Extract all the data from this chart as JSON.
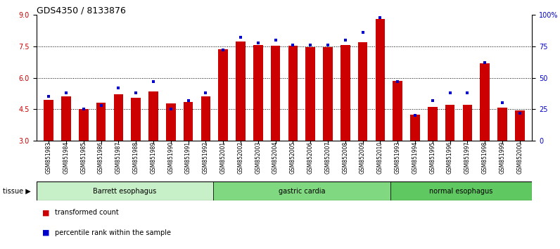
{
  "title": "GDS4350 / 8133876",
  "samples": [
    "GSM851983",
    "GSM851984",
    "GSM851985",
    "GSM851986",
    "GSM851987",
    "GSM851988",
    "GSM851989",
    "GSM851990",
    "GSM851991",
    "GSM851992",
    "GSM852001",
    "GSM852002",
    "GSM852003",
    "GSM852004",
    "GSM852005",
    "GSM852006",
    "GSM852007",
    "GSM852008",
    "GSM852009",
    "GSM852010",
    "GSM851993",
    "GSM851994",
    "GSM851995",
    "GSM851996",
    "GSM851997",
    "GSM851998",
    "GSM851999",
    "GSM852000"
  ],
  "red_values": [
    4.95,
    5.1,
    4.5,
    4.82,
    5.2,
    5.05,
    5.35,
    4.78,
    4.85,
    5.1,
    7.35,
    7.72,
    7.58,
    7.52,
    7.52,
    7.45,
    7.48,
    7.55,
    7.7,
    8.82,
    5.85,
    4.25,
    4.62,
    4.7,
    4.7,
    6.68,
    4.58,
    4.45
  ],
  "blue_values": [
    35,
    38,
    25,
    28,
    42,
    38,
    47,
    25,
    32,
    38,
    72,
    82,
    78,
    80,
    76,
    76,
    76,
    80,
    86,
    98,
    47,
    20,
    32,
    38,
    38,
    62,
    30,
    22
  ],
  "groups": [
    {
      "label": "Barrett esophagus",
      "start": 0,
      "end": 10,
      "color": "#c8f0c8"
    },
    {
      "label": "gastric cardia",
      "start": 10,
      "end": 20,
      "color": "#80d880"
    },
    {
      "label": "normal esophagus",
      "start": 20,
      "end": 28,
      "color": "#60c860"
    }
  ],
  "ylim_left": [
    3,
    9
  ],
  "ylim_right": [
    0,
    100
  ],
  "yticks_left": [
    3,
    4.5,
    6,
    7.5,
    9
  ],
  "yticks_right": [
    0,
    25,
    50,
    75,
    100
  ],
  "ytick_labels_right": [
    "0",
    "25",
    "50",
    "75",
    "100%"
  ],
  "bar_color": "#cc0000",
  "dot_color": "#0000cc",
  "legend_red": "transformed count",
  "legend_blue": "percentile rank within the sample",
  "background_color": "#ffffff",
  "bar_width": 0.55
}
